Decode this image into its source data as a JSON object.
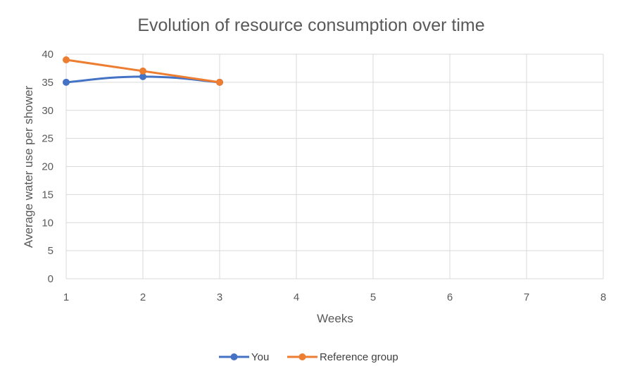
{
  "chart_data": {
    "type": "line",
    "title": "Evolution of resource consumption over time",
    "xlabel": "Weeks",
    "ylabel": "Average water use per shower",
    "x_ticks": [
      1,
      2,
      3,
      4,
      5,
      6,
      7,
      8
    ],
    "y_ticks": [
      0,
      5,
      10,
      15,
      20,
      25,
      30,
      35,
      40
    ],
    "xlim": [
      1,
      8
    ],
    "ylim": [
      0,
      40
    ],
    "grid": true,
    "legend_position": "bottom",
    "series": [
      {
        "name": "You",
        "color": "#4472C4",
        "smooth": true,
        "points": [
          {
            "x": 1,
            "y": 35
          },
          {
            "x": 2,
            "y": 36
          },
          {
            "x": 3,
            "y": 35
          }
        ]
      },
      {
        "name": "Reference group",
        "color": "#ED7D31",
        "smooth": false,
        "points": [
          {
            "x": 1,
            "y": 39
          },
          {
            "x": 2,
            "y": 37
          },
          {
            "x": 3,
            "y": 35
          }
        ]
      }
    ]
  }
}
